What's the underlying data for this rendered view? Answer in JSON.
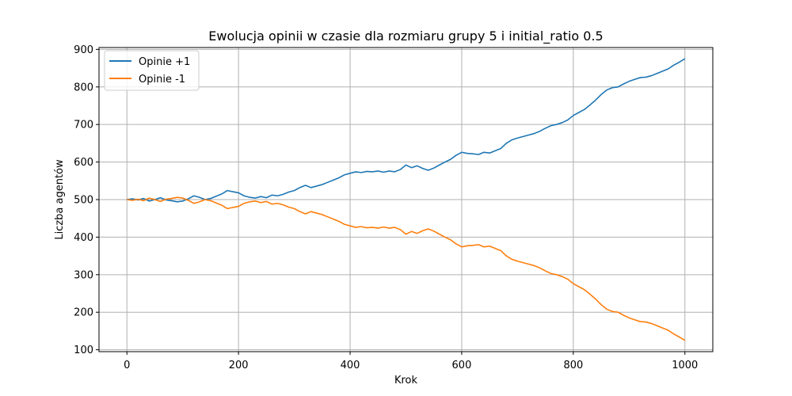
{
  "chart_data": {
    "type": "line",
    "title": "Ewolucja opinii w czasie dla rozmiaru grupy 5 i initial_ratio 0.5",
    "xlabel": "Krok",
    "ylabel": "Liczba agentów",
    "xlim": [
      -50,
      1050
    ],
    "ylim": [
      95,
      905
    ],
    "xticks": [
      0,
      200,
      400,
      600,
      800,
      1000
    ],
    "yticks": [
      100,
      200,
      300,
      400,
      500,
      600,
      700,
      800,
      900
    ],
    "grid": true,
    "legend_position": "top-left",
    "series": [
      {
        "name": "Opinie +1",
        "color": "#1f77b4",
        "x": [
          0,
          10,
          20,
          30,
          40,
          50,
          60,
          70,
          80,
          90,
          100,
          110,
          120,
          130,
          140,
          150,
          160,
          170,
          180,
          190,
          200,
          210,
          220,
          230,
          240,
          250,
          260,
          270,
          280,
          290,
          300,
          310,
          320,
          330,
          340,
          350,
          360,
          370,
          380,
          390,
          400,
          410,
          420,
          430,
          440,
          450,
          460,
          470,
          480,
          490,
          500,
          510,
          520,
          530,
          540,
          550,
          560,
          570,
          580,
          590,
          600,
          610,
          620,
          630,
          640,
          650,
          660,
          670,
          680,
          690,
          700,
          710,
          720,
          730,
          740,
          750,
          760,
          770,
          780,
          790,
          800,
          810,
          820,
          830,
          840,
          850,
          860,
          870,
          880,
          890,
          900,
          910,
          920,
          930,
          940,
          950,
          960,
          970,
          980,
          990,
          1000
        ],
        "y": [
          500,
          502,
          499,
          503,
          496,
          500,
          505,
          499,
          497,
          494,
          496,
          502,
          510,
          506,
          500,
          503,
          509,
          515,
          524,
          521,
          518,
          510,
          506,
          504,
          508,
          505,
          512,
          510,
          514,
          520,
          524,
          532,
          538,
          532,
          536,
          540,
          546,
          552,
          558,
          566,
          570,
          574,
          572,
          575,
          574,
          576,
          573,
          576,
          574,
          580,
          592,
          585,
          590,
          583,
          578,
          584,
          592,
          600,
          607,
          618,
          626,
          623,
          622,
          620,
          626,
          624,
          630,
          636,
          650,
          659,
          664,
          668,
          672,
          676,
          682,
          690,
          697,
          700,
          705,
          712,
          724,
          732,
          740,
          752,
          765,
          780,
          792,
          798,
          800,
          808,
          815,
          820,
          825,
          826,
          830,
          836,
          842,
          848,
          858,
          866,
          875
        ]
      },
      {
        "name": "Opinie -1",
        "color": "#ff7f0e",
        "x": [
          0,
          10,
          20,
          30,
          40,
          50,
          60,
          70,
          80,
          90,
          100,
          110,
          120,
          130,
          140,
          150,
          160,
          170,
          180,
          190,
          200,
          210,
          220,
          230,
          240,
          250,
          260,
          270,
          280,
          290,
          300,
          310,
          320,
          330,
          340,
          350,
          360,
          370,
          380,
          390,
          400,
          410,
          420,
          430,
          440,
          450,
          460,
          470,
          480,
          490,
          500,
          510,
          520,
          530,
          540,
          550,
          560,
          570,
          580,
          590,
          600,
          610,
          620,
          630,
          640,
          650,
          660,
          670,
          680,
          690,
          700,
          710,
          720,
          730,
          740,
          750,
          760,
          770,
          780,
          790,
          800,
          810,
          820,
          830,
          840,
          850,
          860,
          870,
          880,
          890,
          900,
          910,
          920,
          930,
          940,
          950,
          960,
          970,
          980,
          990,
          1000
        ],
        "y": [
          500,
          498,
          501,
          497,
          504,
          500,
          495,
          501,
          503,
          506,
          504,
          498,
          490,
          494,
          500,
          497,
          491,
          485,
          476,
          479,
          482,
          490,
          494,
          496,
          492,
          495,
          488,
          490,
          486,
          480,
          476,
          468,
          462,
          468,
          464,
          460,
          454,
          448,
          442,
          434,
          430,
          426,
          428,
          425,
          426,
          424,
          427,
          424,
          426,
          420,
          408,
          415,
          410,
          417,
          422,
          416,
          408,
          400,
          393,
          382,
          374,
          377,
          378,
          380,
          374,
          376,
          370,
          364,
          350,
          341,
          336,
          332,
          328,
          324,
          318,
          310,
          303,
          300,
          295,
          288,
          276,
          268,
          260,
          248,
          235,
          220,
          208,
          202,
          200,
          192,
          185,
          180,
          175,
          174,
          170,
          164,
          158,
          152,
          142,
          134,
          125
        ]
      }
    ]
  }
}
